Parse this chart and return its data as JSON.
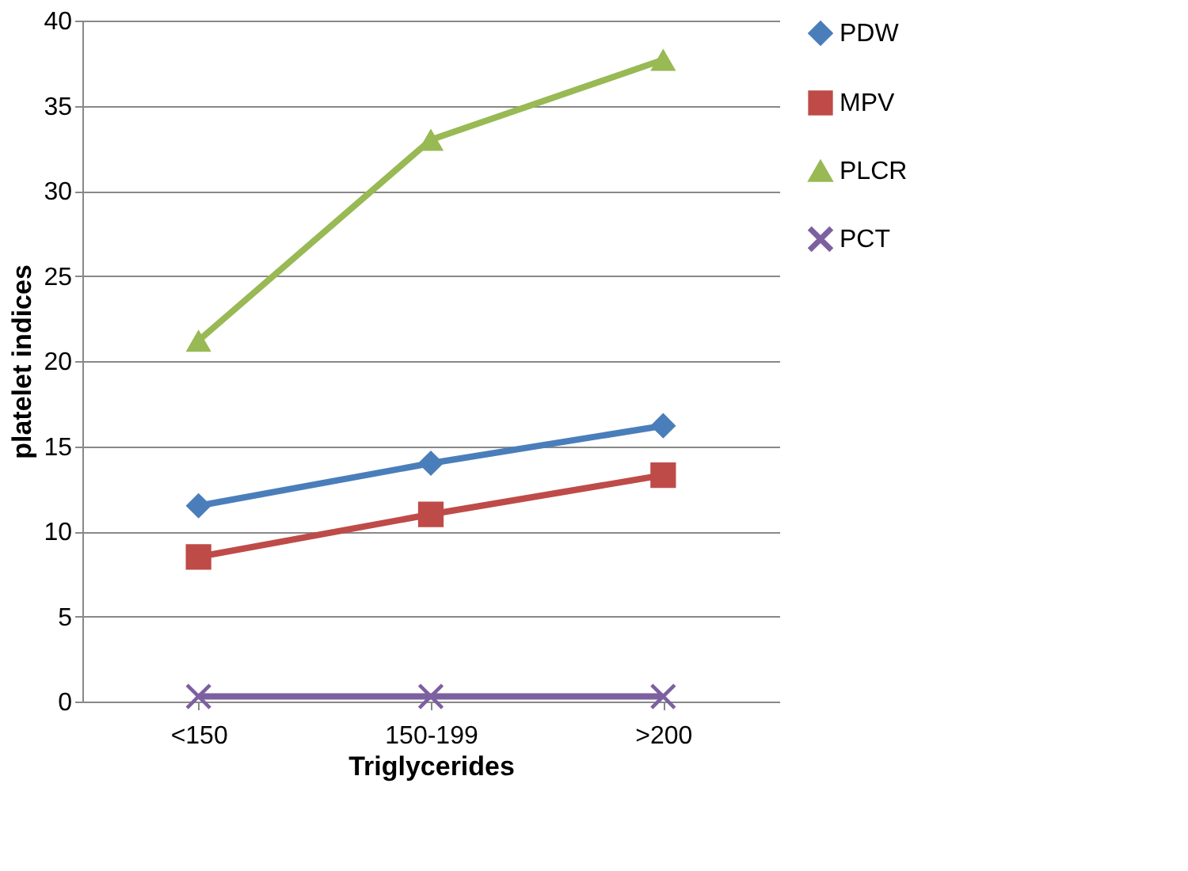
{
  "chart_data": {
    "type": "line",
    "xlabel": "Triglycerides",
    "ylabel": "platelet indices",
    "categories": [
      "<150",
      "150-199",
      ">200"
    ],
    "ylim": [
      0,
      40
    ],
    "yticks": [
      0,
      5,
      10,
      15,
      20,
      25,
      30,
      35,
      40
    ],
    "grid": "y",
    "legend": "right",
    "line_style": "solid",
    "series": [
      {
        "name": "PDW",
        "color": "#4a7ebb",
        "marker": "diamond",
        "values": [
          11.5,
          14,
          16.2
        ]
      },
      {
        "name": "MPV",
        "color": "#be4b48",
        "marker": "square",
        "values": [
          8.5,
          11,
          13.3
        ]
      },
      {
        "name": "PLCR",
        "color": "#98b954",
        "marker": "triangle",
        "values": [
          21.2,
          33,
          37.7
        ]
      },
      {
        "name": "PCT",
        "color": "#7d60a0",
        "marker": "cross",
        "values": [
          0.3,
          0.3,
          0.3
        ]
      }
    ]
  }
}
